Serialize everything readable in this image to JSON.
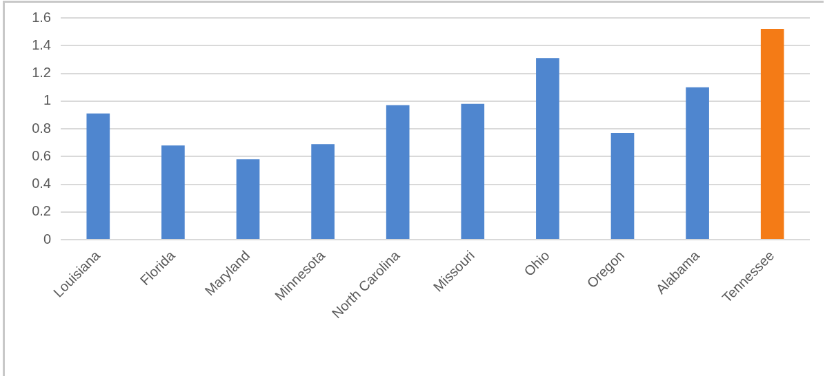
{
  "chart_data": {
    "type": "bar",
    "categories": [
      "Louisiana",
      "Florida",
      "Maryland",
      "Minnesota",
      "North Carolina",
      "Missouri",
      "Ohio",
      "Oregon",
      "Alabama",
      "Tennessee"
    ],
    "values": [
      0.91,
      0.68,
      0.58,
      0.69,
      0.97,
      0.98,
      1.31,
      0.77,
      1.1,
      1.52
    ],
    "colors": [
      "#4f86cf",
      "#4f86cf",
      "#4f86cf",
      "#4f86cf",
      "#4f86cf",
      "#4f86cf",
      "#4f86cf",
      "#4f86cf",
      "#4f86cf",
      "#f47b16"
    ],
    "ylim": [
      0,
      1.6
    ],
    "yticks": [
      0,
      0.2,
      0.4,
      0.6,
      0.8,
      1,
      1.2,
      1.4,
      1.6
    ],
    "grid": "y"
  }
}
